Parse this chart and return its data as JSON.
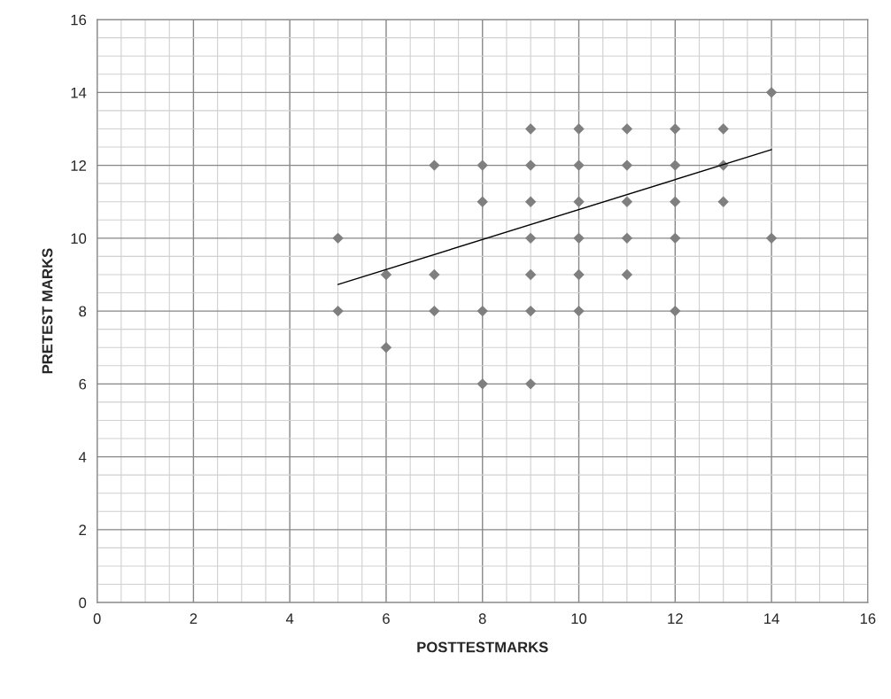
{
  "chart_data": {
    "type": "scatter",
    "xlabel": "POSTTESTMARKS",
    "ylabel": "PRETEST MARKS",
    "xlim": [
      0,
      16
    ],
    "ylim": [
      0,
      16
    ],
    "xticks": [
      0,
      2,
      4,
      6,
      8,
      10,
      12,
      14,
      16
    ],
    "yticks": [
      0,
      2,
      4,
      6,
      8,
      10,
      12,
      14,
      16
    ],
    "grid": true,
    "marker": "diamond",
    "series": [
      {
        "color": "#7f7f7f",
        "x": [
          5,
          5,
          6,
          6,
          7,
          7,
          7,
          8,
          8,
          8,
          8,
          9,
          9,
          9,
          9,
          9,
          9,
          9,
          10,
          10,
          10,
          10,
          10,
          10,
          11,
          11,
          11,
          11,
          11,
          12,
          12,
          12,
          12,
          12,
          13,
          13,
          13,
          14,
          14
        ],
        "values": [
          10,
          8,
          9,
          7,
          12,
          9,
          8,
          12,
          11,
          8,
          6,
          13,
          12,
          11,
          10,
          9,
          8,
          6,
          13,
          12,
          11,
          10,
          9,
          8,
          13,
          12,
          11,
          10,
          9,
          13,
          12,
          11,
          10,
          8,
          13,
          12,
          11,
          14,
          10
        ]
      },
      {
        "type": "line",
        "color": "#000000",
        "marker": "none",
        "x": [
          5,
          14
        ],
        "values": [
          8.73,
          12.43
        ]
      }
    ]
  }
}
